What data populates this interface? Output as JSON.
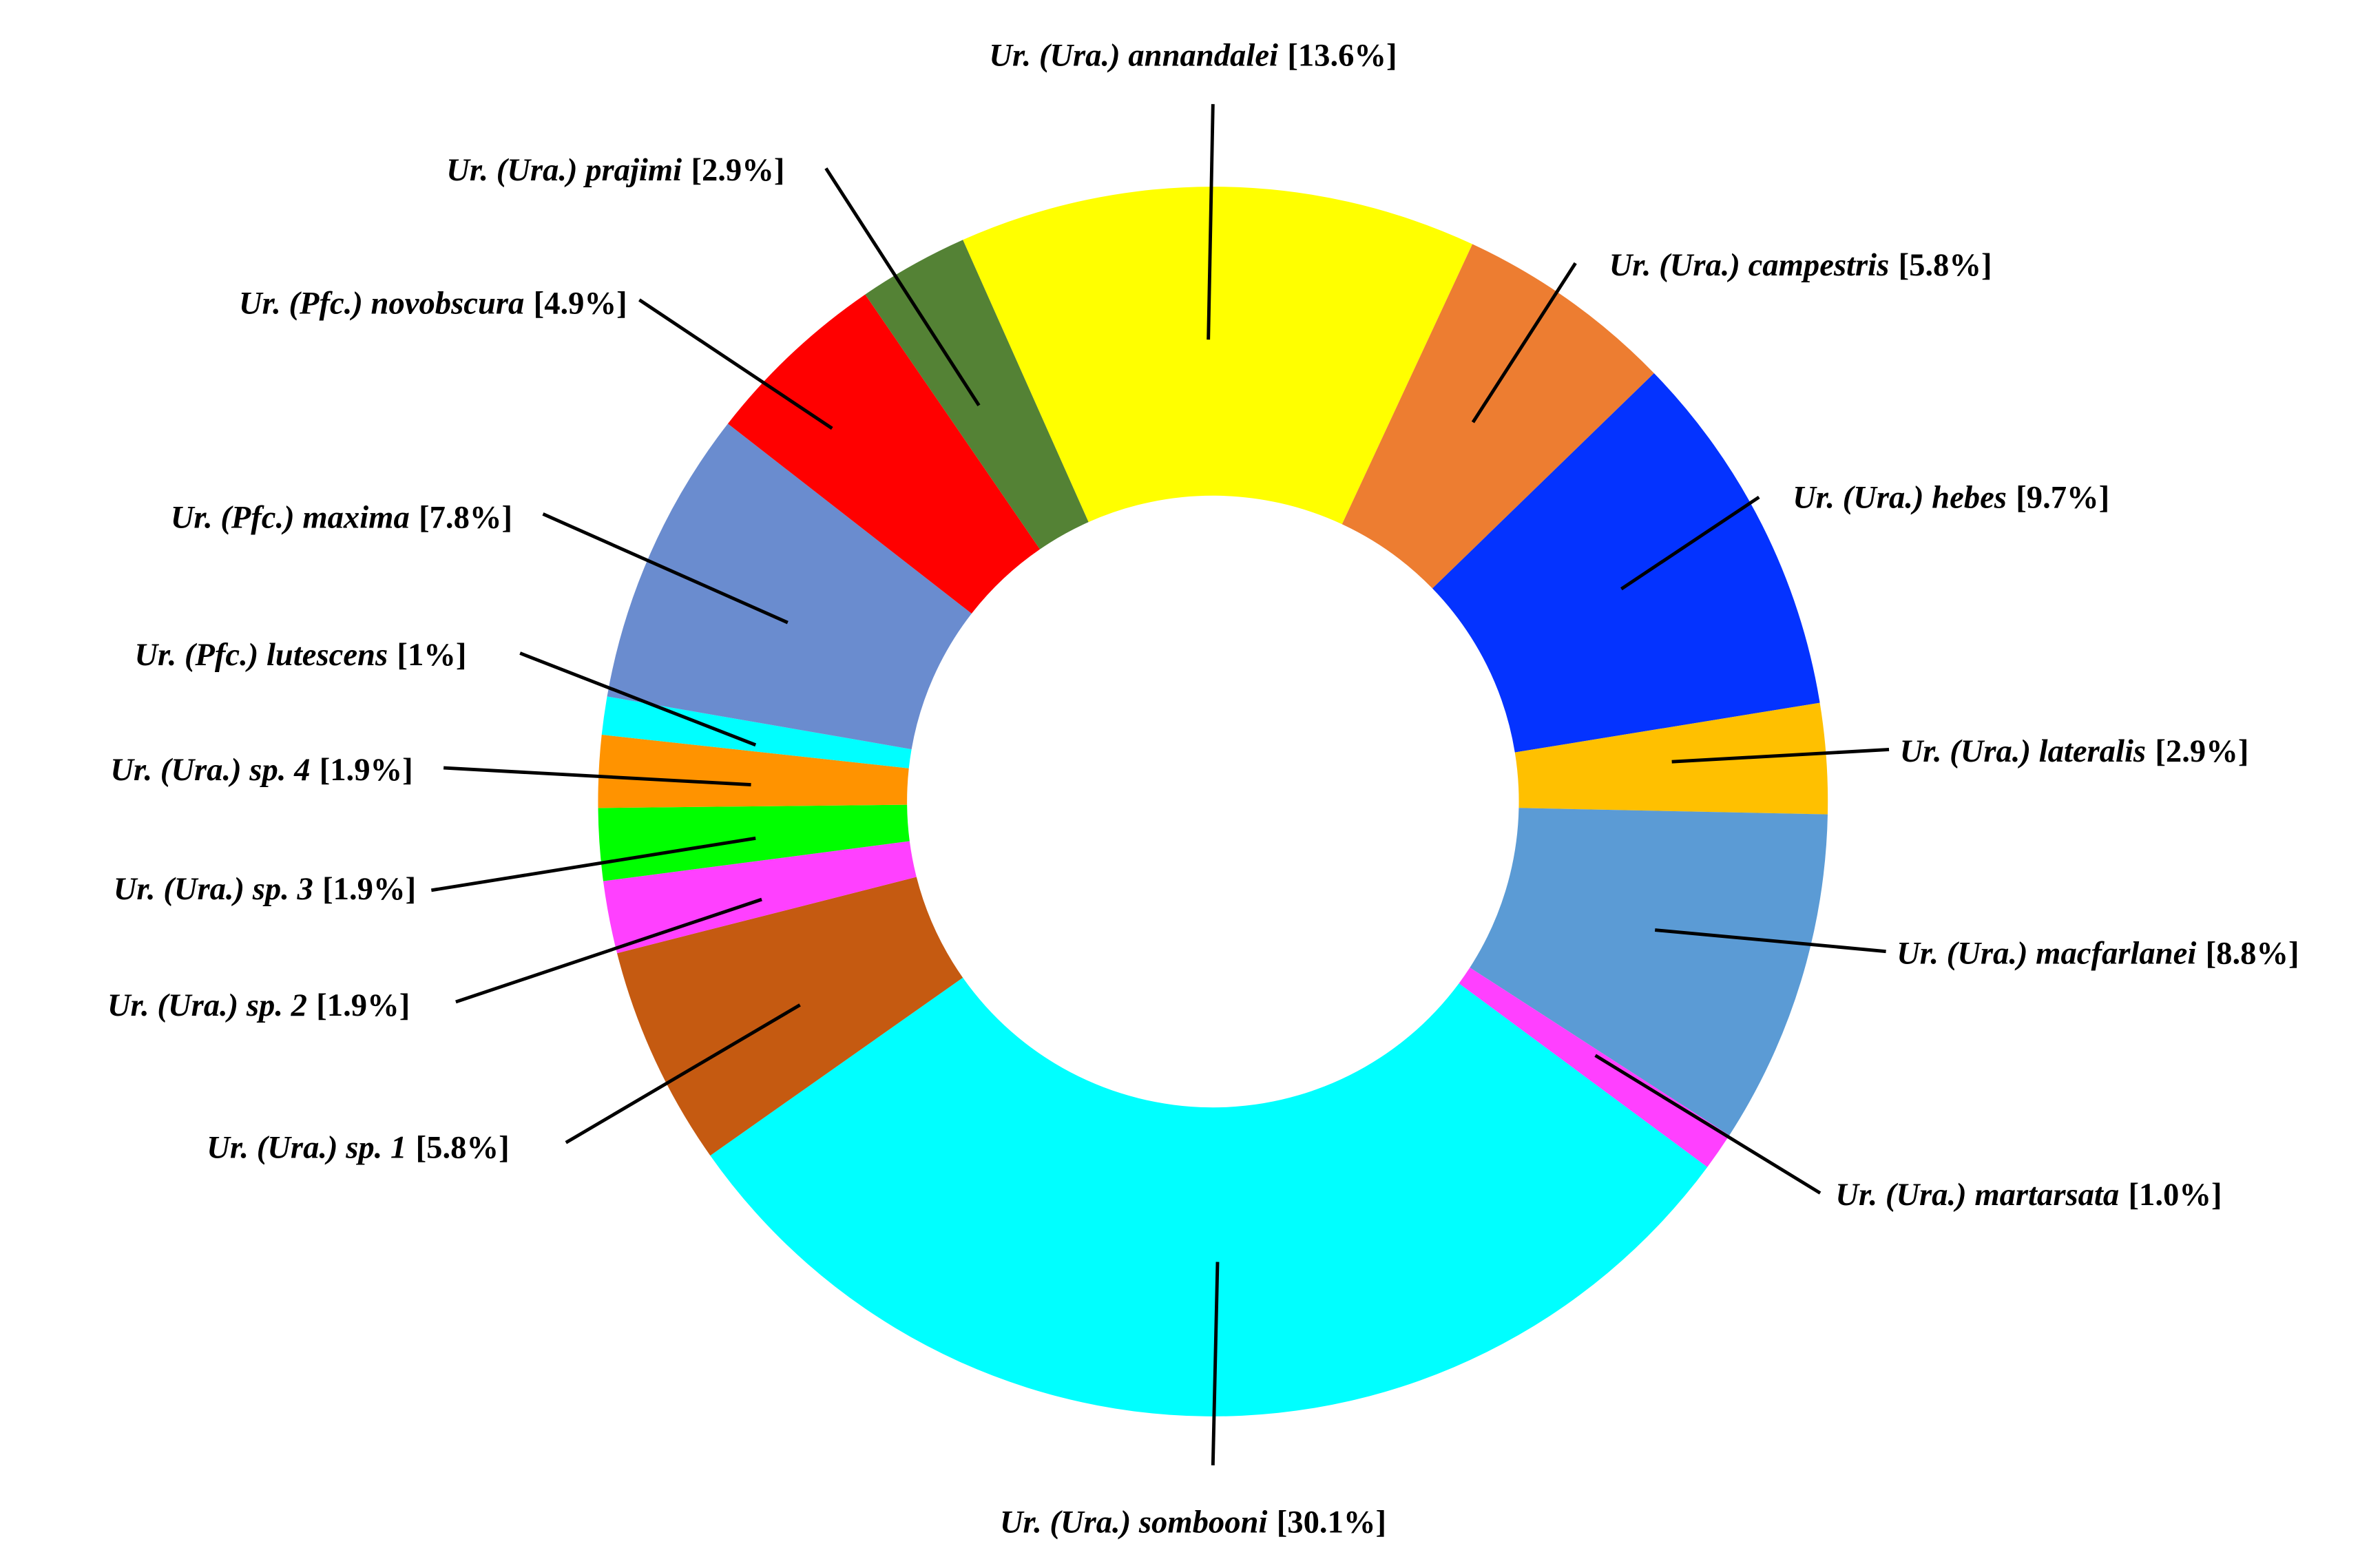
{
  "chart_data": {
    "type": "donut",
    "categories": [
      "Ur. (Ura.) annandalei",
      "Ur. (Ura.) campestris",
      "Ur. (Ura.) hebes",
      "Ur. (Ura.) lateralis",
      "Ur. (Ura.) macfarlanei",
      "Ur. (Ura.) martarsata",
      "Ur. (Ura.) sombooni",
      "Ur. (Ura.) sp. 1",
      "Ur. (Ura.) sp. 2",
      "Ur. (Ura.) sp. 3",
      "Ur. (Ura.) sp. 4",
      "Ur. (Pfc.) lutescens",
      "Ur. (Pfc.) maxima",
      "Ur. (Pfc.) novobscura",
      "Ur. (Ura.) prajimi"
    ],
    "values": [
      13.6,
      5.8,
      9.7,
      2.9,
      8.8,
      1.0,
      30.1,
      5.8,
      1.9,
      1.9,
      1.9,
      1,
      7.8,
      4.9,
      2.9
    ],
    "value_labels": [
      "[13.6%]",
      "[5.8%]",
      "[9.7%]",
      "[2.9%]",
      "[8.8%]",
      "[1.0%]",
      "[30.1%]",
      "[5.8%]",
      "[1.9%]",
      "[1.9%]",
      "[1.9%]",
      "[1%]",
      "[7.8%]",
      "[4.9%]",
      "[2.9%]"
    ],
    "colors": [
      "#ffff00",
      "#ed7d31",
      "#0433ff",
      "#ffc000",
      "#5b9bd5",
      "#ff40ff",
      "#00ffff",
      "#c55a11",
      "#ff40ff",
      "#00ff00",
      "#ff9300",
      "#00ffff",
      "#6a8ccf",
      "#ff0000",
      "#548235"
    ]
  }
}
